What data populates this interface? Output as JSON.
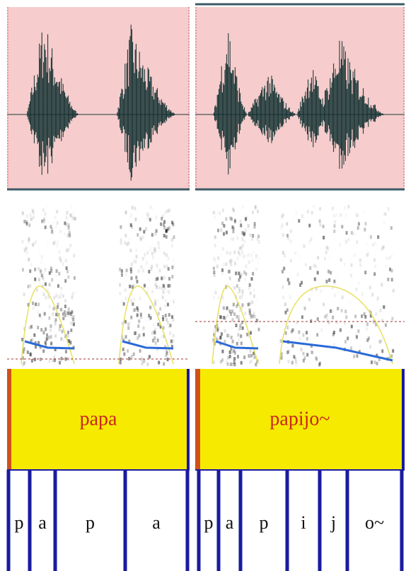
{
  "panels": [
    {
      "word": "papa",
      "segments": [
        "p",
        "a",
        "p",
        "a"
      ]
    },
    {
      "word": "papijo~",
      "segments": [
        "p",
        "a",
        "p",
        "i",
        "j",
        "o~"
      ]
    }
  ]
}
